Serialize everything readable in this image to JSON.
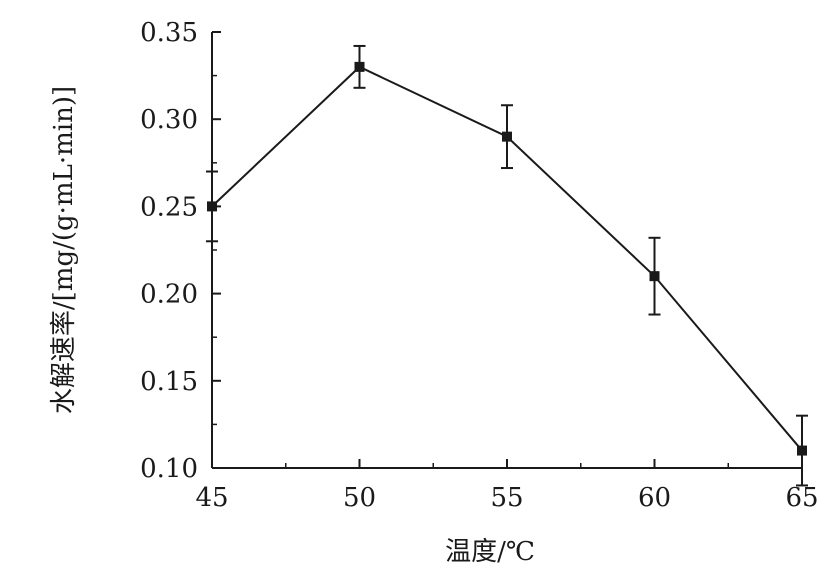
{
  "chart_data": {
    "type": "line",
    "title": "",
    "xlabel": "温度/℃",
    "ylabel": "水解速率/[mg/(g·mL·min)]",
    "x": [
      45,
      50,
      55,
      60,
      65
    ],
    "series": [
      {
        "values": [
          0.25,
          0.33,
          0.29,
          0.21,
          0.11
        ],
        "error": [
          0.02,
          0.012,
          0.018,
          0.022,
          0.02
        ]
      }
    ],
    "xlim": [
      45,
      65
    ],
    "ylim": [
      0.1,
      0.35
    ],
    "xticks": [
      "45",
      "50",
      "55",
      "60",
      "65"
    ],
    "yticks": [
      "0.10",
      "0.15",
      "0.20",
      "0.25",
      "0.30",
      "0.35"
    ],
    "grid": false,
    "legend": "none",
    "line_color": "#1a1a1a",
    "marker": "square"
  }
}
